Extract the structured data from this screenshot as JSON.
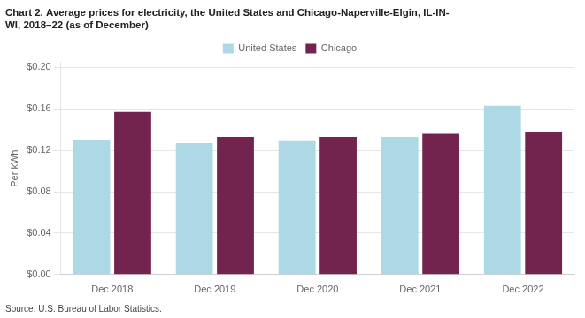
{
  "chart_data": {
    "type": "bar",
    "title": [
      "Chart 2. Average prices for electricity, the United States and Chicago-Naperville-Elgin, IL-IN-",
      "WI, 2018–22 (as of December)"
    ],
    "ylabel": "Per kWh",
    "source": "Source: U.S. Bureau of Labor Statistics.",
    "categories": [
      "Dec 2018",
      "Dec 2019",
      "Dec 2020",
      "Dec 2021",
      "Dec 2022"
    ],
    "series": [
      {
        "name": "United States",
        "color": "#ADD8E6",
        "values": [
          0.13,
          0.127,
          0.129,
          0.133,
          0.163
        ]
      },
      {
        "name": "Chicago",
        "color": "#72244E",
        "values": [
          0.157,
          0.133,
          0.133,
          0.136,
          0.138
        ]
      }
    ],
    "ylim": [
      0.0,
      0.205
    ],
    "yticks": [
      {
        "value": 0.0,
        "label": "$0.00"
      },
      {
        "value": 0.04,
        "label": "$0.04"
      },
      {
        "value": 0.08,
        "label": "$0.08"
      },
      {
        "value": 0.12,
        "label": "$0.12"
      },
      {
        "value": 0.16,
        "label": "$0.16"
      },
      {
        "value": 0.2,
        "label": "$0.20"
      }
    ],
    "grid": true,
    "legend": "top"
  }
}
